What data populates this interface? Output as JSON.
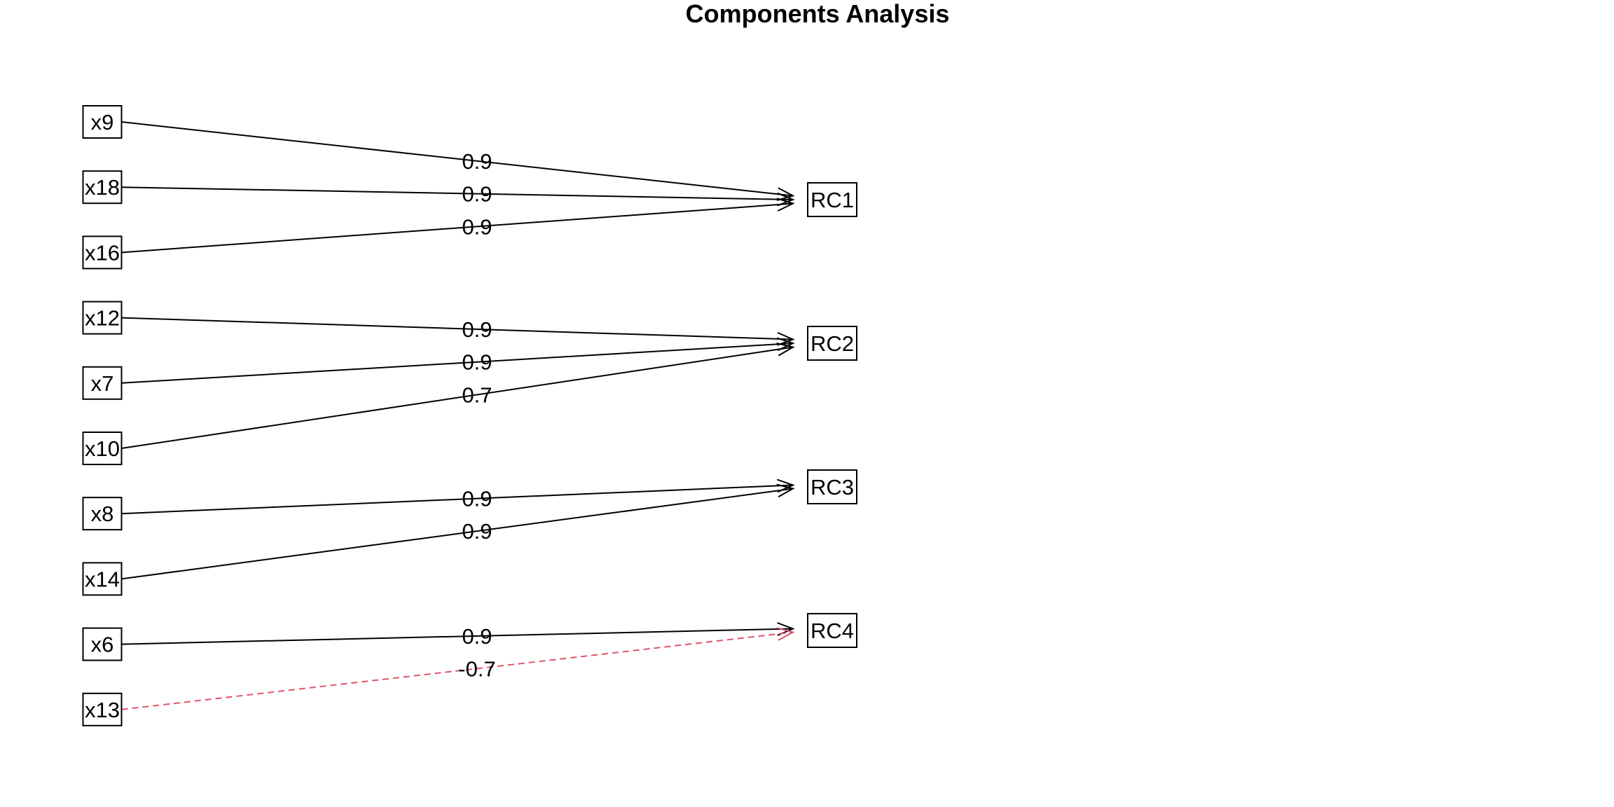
{
  "title": "Components Analysis",
  "colors": {
    "positive": "#000000",
    "negative": "#DF536B",
    "box": "#000000",
    "background": "#FFFFFF"
  },
  "variables": [
    "x9",
    "x18",
    "x16",
    "x12",
    "x7",
    "x10",
    "x8",
    "x14",
    "x6",
    "x13"
  ],
  "components": [
    "RC1",
    "RC2",
    "RC3",
    "RC4"
  ],
  "loadings": [
    {
      "from": "x9",
      "to": "RC1",
      "label": "0.9",
      "value": 0.9
    },
    {
      "from": "x18",
      "to": "RC1",
      "label": "0.9",
      "value": 0.9
    },
    {
      "from": "x16",
      "to": "RC1",
      "label": "0.9",
      "value": 0.9
    },
    {
      "from": "x12",
      "to": "RC2",
      "label": "0.9",
      "value": 0.9
    },
    {
      "from": "x7",
      "to": "RC2",
      "label": "0.9",
      "value": 0.9
    },
    {
      "from": "x10",
      "to": "RC2",
      "label": "0.7",
      "value": 0.7
    },
    {
      "from": "x8",
      "to": "RC3",
      "label": "0.9",
      "value": 0.9
    },
    {
      "from": "x14",
      "to": "RC3",
      "label": "0.9",
      "value": 0.9
    },
    {
      "from": "x6",
      "to": "RC4",
      "label": "0.9",
      "value": 0.9
    },
    {
      "from": "x13",
      "to": "RC4",
      "label": "-0.7",
      "value": -0.7
    }
  ]
}
